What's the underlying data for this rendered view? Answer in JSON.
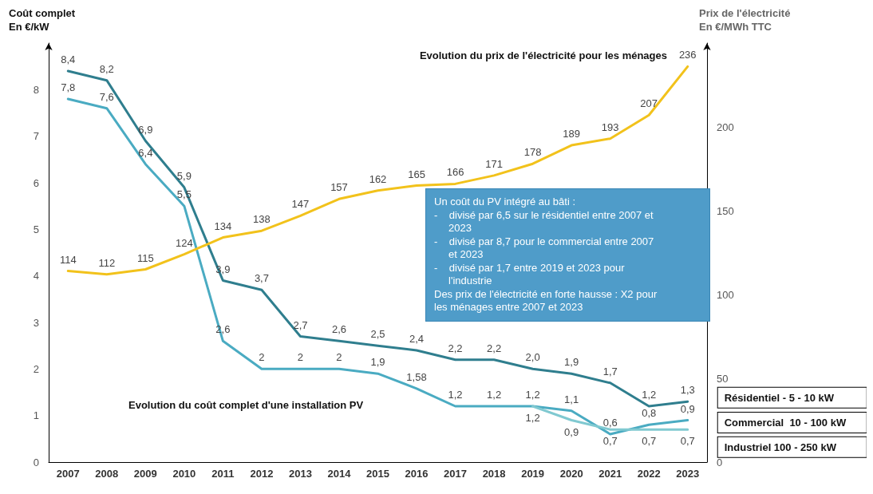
{
  "chart_data": {
    "type": "line",
    "ylabel": "Coût complet\nEn €/kW",
    "y2label": "Prix de l'électricité\nEn €/MWh TTC",
    "categories": [
      "2007",
      "2008",
      "2009",
      "2010",
      "2011",
      "2012",
      "2013",
      "2014",
      "2015",
      "2016",
      "2017",
      "2018",
      "2019",
      "2020",
      "2021",
      "2022",
      "2023"
    ],
    "series": [
      {
        "name": "Résidentiel - 5 - 10 kW",
        "color": "#2f7e8e",
        "values": [
          8.4,
          8.2,
          6.9,
          5.9,
          3.9,
          3.7,
          2.7,
          2.6,
          2.5,
          2.4,
          2.2,
          2.2,
          2.0,
          1.9,
          1.7,
          1.2,
          1.3
        ],
        "value_labels": [
          "8,4",
          "8,2",
          "6,9",
          "5,9",
          "3,9",
          "3,7",
          "2,7",
          "2,6",
          "2,5",
          "2,4",
          "2,2",
          "2,2",
          "2,0",
          "1,9",
          "1,7",
          "1,2",
          "1,3"
        ]
      },
      {
        "name": "Commercial  10 - 100 kW",
        "color": "#4aabc2",
        "values": [
          7.8,
          7.6,
          6.4,
          5.5,
          2.6,
          2,
          2,
          2,
          1.9,
          1.58,
          1.2,
          1.2,
          1.2,
          1.1,
          0.6,
          0.8,
          0.9
        ],
        "value_labels": [
          "7,8",
          "7,6",
          "6,4",
          "5,5",
          "2,6",
          "2",
          "2",
          "2",
          "1,9",
          "1,58",
          "1,2",
          "1,2",
          "1,2",
          "1,1",
          "0,6",
          "0,8",
          "0,9"
        ]
      },
      {
        "name": "Industriel 100 - 250 kW",
        "color": "#80c9d1",
        "values": [
          null,
          null,
          null,
          null,
          null,
          null,
          null,
          null,
          null,
          null,
          null,
          null,
          1.2,
          0.9,
          0.7,
          0.7,
          0.7
        ],
        "value_labels": [
          null,
          null,
          null,
          null,
          null,
          null,
          null,
          null,
          null,
          null,
          null,
          null,
          "1,2",
          "0,9",
          "0,7",
          "0,7",
          "0,7"
        ]
      },
      {
        "color": "#f2c21b",
        "axis": "y2",
        "values": [
          114,
          112,
          115,
          124,
          134,
          138,
          147,
          157,
          162,
          165,
          166,
          171,
          178,
          189,
          193,
          207,
          236
        ],
        "value_labels": [
          "114",
          "112",
          "115",
          "124",
          "134",
          "138",
          "147",
          "157",
          "162",
          "165",
          "166",
          "171",
          "178",
          "189",
          "193",
          "207",
          "236"
        ]
      }
    ],
    "ylim": [
      0,
      9
    ],
    "yticks": [
      0,
      1,
      2,
      3,
      4,
      5,
      6,
      7,
      8
    ],
    "y2lim": [
      0,
      250
    ],
    "y2ticks": [
      0,
      50,
      100,
      150,
      200
    ],
    "annotations": [
      "Evolution du prix de l'électricité pour les ménages",
      "Evolution du coût complet d'une installation PV",
      "Un coût du PV intégré au bâti :\n-    divisé par 6,5 sur le résidentiel entre 2007 et\n     2023\n-    divisé par 8,7 pour le commercial entre 2007\n     et 2023\n-    divisé par 1,7 entre 2019 et 2023 pour\n     l'industrie\nDes prix de l'électricité en forte hausse : X2 pour\nles ménages entre 2007 et 2023"
    ],
    "legend": "right",
    "grid": false,
    "marker": "none",
    "line_style": "solid"
  }
}
